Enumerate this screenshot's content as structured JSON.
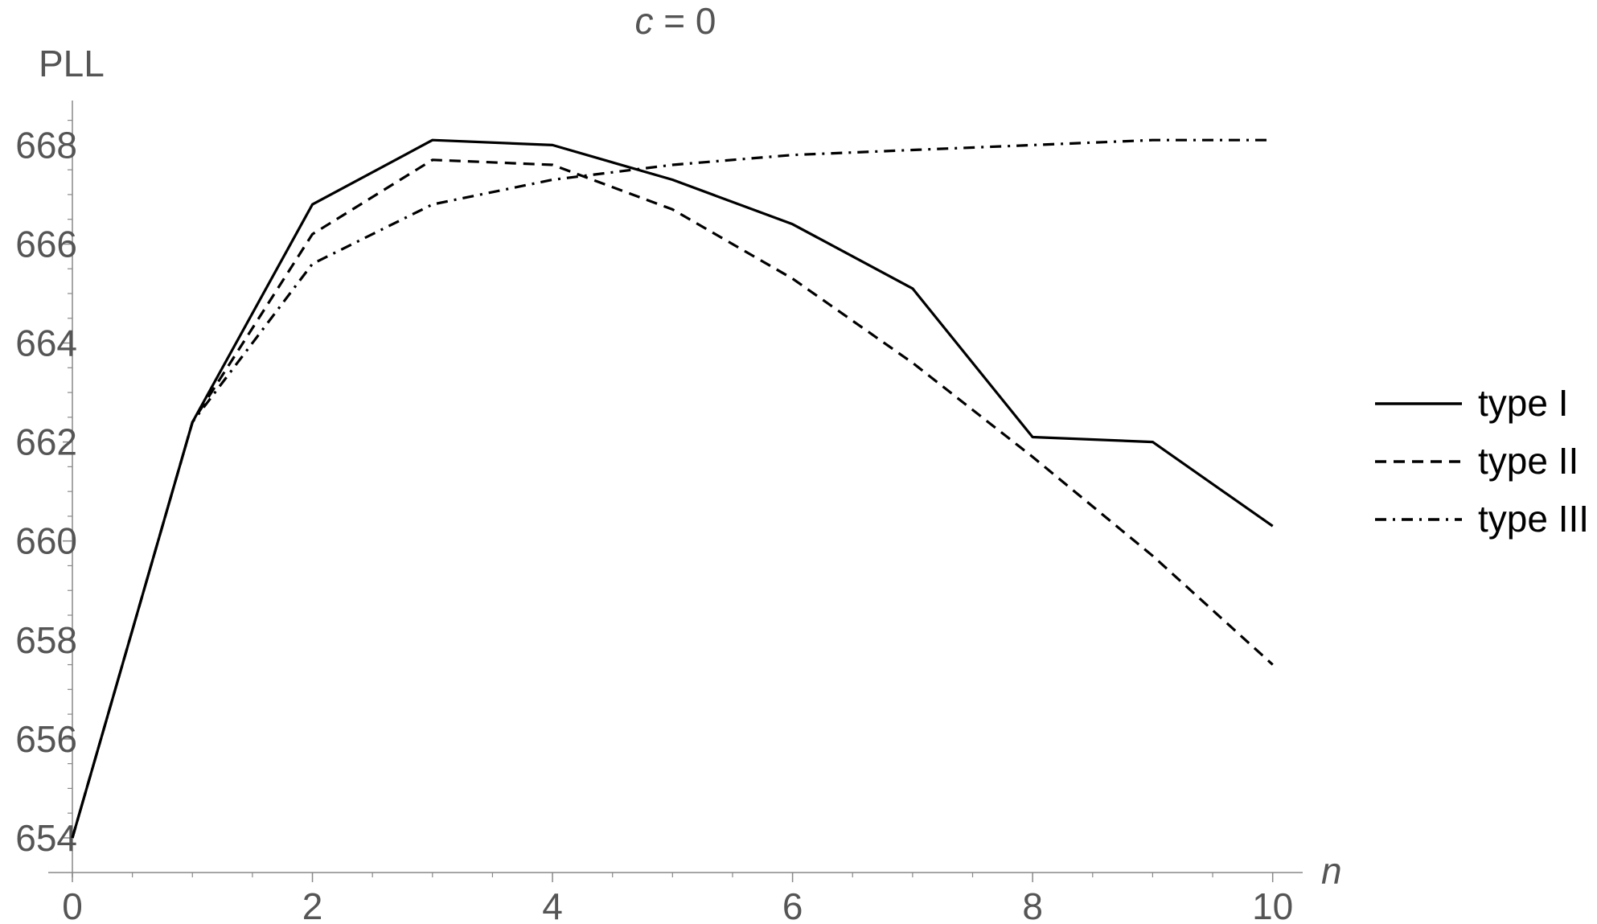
{
  "chart_data": {
    "type": "line",
    "title": "= 0",
    "title_var": "c",
    "xlabel": "n",
    "ylabel": "PLL",
    "xlim": [
      0,
      10.25
    ],
    "ylim": [
      653.3,
      668.9
    ],
    "xticks": [
      0,
      2,
      4,
      6,
      8,
      10
    ],
    "yticks": [
      654,
      656,
      658,
      660,
      662,
      664,
      666,
      668
    ],
    "grid": false,
    "legend_position": "right",
    "series": [
      {
        "name": "type I",
        "style": "solid",
        "x": [
          0,
          1,
          2,
          3,
          4,
          5,
          6,
          7,
          8,
          9,
          10
        ],
        "values": [
          654.0,
          662.4,
          666.8,
          668.1,
          668.0,
          667.3,
          666.4,
          665.1,
          662.1,
          662.0,
          660.3
        ]
      },
      {
        "name": "type II",
        "style": "dashed",
        "x": [
          0,
          1,
          2,
          3,
          4,
          5,
          6,
          7,
          8,
          9,
          10
        ],
        "values": [
          654.0,
          662.4,
          666.2,
          667.7,
          667.6,
          666.7,
          665.3,
          663.6,
          661.7,
          659.7,
          657.5
        ]
      },
      {
        "name": "type III",
        "style": "dashdot",
        "x": [
          0,
          1,
          2,
          3,
          4,
          5,
          6,
          7,
          8,
          9,
          10
        ],
        "values": [
          654.0,
          662.4,
          665.6,
          666.8,
          667.3,
          667.6,
          667.8,
          667.9,
          668.0,
          668.1,
          668.1
        ]
      }
    ],
    "colors": {
      "line": "#000000",
      "axis": "#888888",
      "text": "#555555"
    }
  }
}
